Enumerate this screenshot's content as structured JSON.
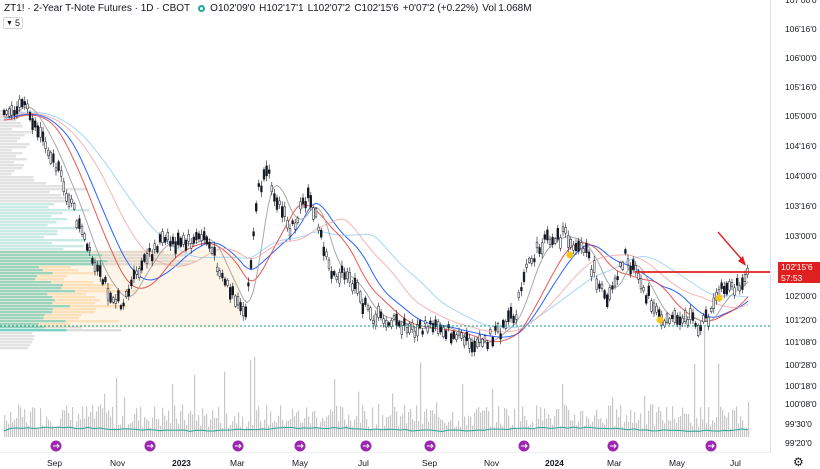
{
  "header": {
    "symbol": "ZT1! · 2-Year T-Note Futures · 1D · CBOT",
    "open_label": "O",
    "open": "102'09'0",
    "high_label": "H",
    "high": "102'17'1",
    "low_label": "L",
    "low": "102'07'2",
    "close_label": "C",
    "close": "102'15'6",
    "change": "+0'07'2 (+0.22%)",
    "vol_label": "Vol",
    "vol": "1.068M",
    "indicator_count": "5"
  },
  "price_axis": {
    "labels": [
      "107'00'0",
      "106'16'0",
      "106'00'0",
      "105'16'0",
      "105'00'0",
      "104'16'0",
      "104'00'0",
      "103'16'0",
      "103'00'0",
      "102'00'0",
      "101'20'0",
      "101'08'0",
      "100'28'0",
      "100'18'0",
      "100'08'0",
      "99'30'0",
      "99'20'0"
    ],
    "current_price": "102'15'6",
    "countdown": "57:53"
  },
  "time_axis": {
    "labels": [
      {
        "text": "Sep",
        "bold": false
      },
      {
        "text": "Nov",
        "bold": false
      },
      {
        "text": "2023",
        "bold": true
      },
      {
        "text": "Mar",
        "bold": false
      },
      {
        "text": "May",
        "bold": false
      },
      {
        "text": "Jul",
        "bold": false
      },
      {
        "text": "Sep",
        "bold": false
      },
      {
        "text": "Nov",
        "bold": false
      },
      {
        "text": "2024",
        "bold": true
      },
      {
        "text": "Mar",
        "bold": false
      },
      {
        "text": "May",
        "bold": false
      },
      {
        "text": "Jul",
        "bold": false
      }
    ]
  },
  "colors": {
    "up": "#131722",
    "down": "#131722",
    "ma_blue": "#2962ff",
    "ma_lightblue": "#90caf9",
    "ma_red": "#e53935",
    "ma_pink": "#f4a3a0",
    "ma_gray": "#9e9e9e",
    "resistance": "#e02020",
    "support": "#089981",
    "vp_teal": "#4fc3b0",
    "vp_orange": "#fbd9a8",
    "vp_gray": "#cfcfcf",
    "marker": "#f5c518",
    "event": "#9c27b0",
    "volume": "#c8c8c8",
    "vol_ma": "#26a69a"
  },
  "icons": {
    "settings": "gear-icon",
    "indicator_toggle": "chevron-down-icon",
    "event_marker": "dividend-icon"
  }
}
